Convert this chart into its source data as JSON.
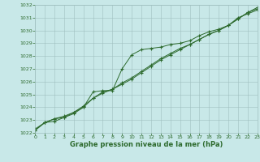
{
  "title": "Graphe pression niveau de la mer (hPa)",
  "x_values": [
    0,
    1,
    2,
    3,
    4,
    5,
    6,
    7,
    8,
    9,
    10,
    11,
    12,
    13,
    14,
    15,
    16,
    17,
    18,
    19,
    20,
    21,
    22,
    23
  ],
  "line1": [
    1022.3,
    1022.8,
    1023.1,
    1023.3,
    1023.6,
    1024.1,
    1024.7,
    1025.1,
    1025.4,
    1025.9,
    1026.3,
    1026.8,
    1027.3,
    1027.8,
    1028.2,
    1028.6,
    1028.9,
    1029.3,
    1029.7,
    1030.0,
    1030.4,
    1030.9,
    1031.4,
    1031.8
  ],
  "line2": [
    1022.2,
    1022.8,
    1022.9,
    1023.2,
    1023.6,
    1024.0,
    1025.2,
    1025.3,
    1025.3,
    1027.0,
    1028.1,
    1028.5,
    1028.6,
    1028.7,
    1028.9,
    1029.0,
    1029.2,
    1029.6,
    1029.9,
    1030.1,
    1030.4,
    1031.0,
    1031.3,
    1031.6
  ],
  "line3": [
    1022.2,
    1022.8,
    1023.1,
    1023.2,
    1023.5,
    1024.0,
    1024.7,
    1025.2,
    1025.4,
    1025.8,
    1026.2,
    1026.7,
    1027.2,
    1027.7,
    1028.1,
    1028.5,
    1028.9,
    1029.3,
    1029.7,
    1030.0,
    1030.4,
    1030.9,
    1031.4,
    1031.7
  ],
  "xlim": [
    0,
    23
  ],
  "ylim": [
    1022,
    1032
  ],
  "yticks": [
    1022,
    1023,
    1024,
    1025,
    1026,
    1027,
    1028,
    1029,
    1030,
    1031,
    1032
  ],
  "xticks": [
    0,
    1,
    2,
    3,
    4,
    5,
    6,
    7,
    8,
    9,
    10,
    11,
    12,
    13,
    14,
    15,
    16,
    17,
    18,
    19,
    20,
    21,
    22,
    23
  ],
  "line_color": "#2d6a2d",
  "bg_color": "#c8e8e8",
  "grid_color": "#9fbfbf",
  "title_color": "#2d6a2d",
  "title_fontsize": 6.0,
  "tick_fontsize": 4.5
}
